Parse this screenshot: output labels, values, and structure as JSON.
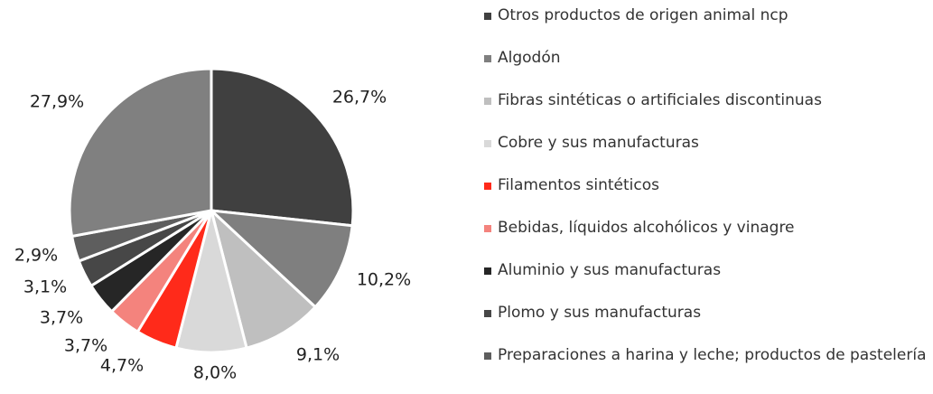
{
  "chart_data": {
    "type": "pie",
    "categories": [
      "Otros productos de origen animal ncp",
      "Algodón",
      "Fibras sintéticas o artificiales discontinuas",
      "Cobre y sus manufacturas",
      "Filamentos sintéticos",
      "Bebidas, líquidos alcohólicos y vinagre",
      "Aluminio y sus manufacturas",
      "Plomo y sus manufacturas",
      "Preparaciones a harina y leche; productos de pastelería",
      null
    ],
    "values": [
      26.7,
      10.2,
      9.1,
      8.0,
      4.7,
      3.7,
      3.7,
      3.1,
      2.9,
      27.9
    ],
    "value_labels": [
      "26,7%",
      "10,2%",
      "9,1%",
      "8,0%",
      "4,7%",
      "3,7%",
      "3,7%",
      "3,1%",
      "2,9%",
      "27,9%"
    ],
    "colors": [
      "#404040",
      "#7f7f7f",
      "#bfbfbf",
      "#d9d9d9",
      "#ff2a1a",
      "#f4837d",
      "#262626",
      "#474747",
      "#5e5e5e",
      "#808080"
    ],
    "legend": "right"
  }
}
